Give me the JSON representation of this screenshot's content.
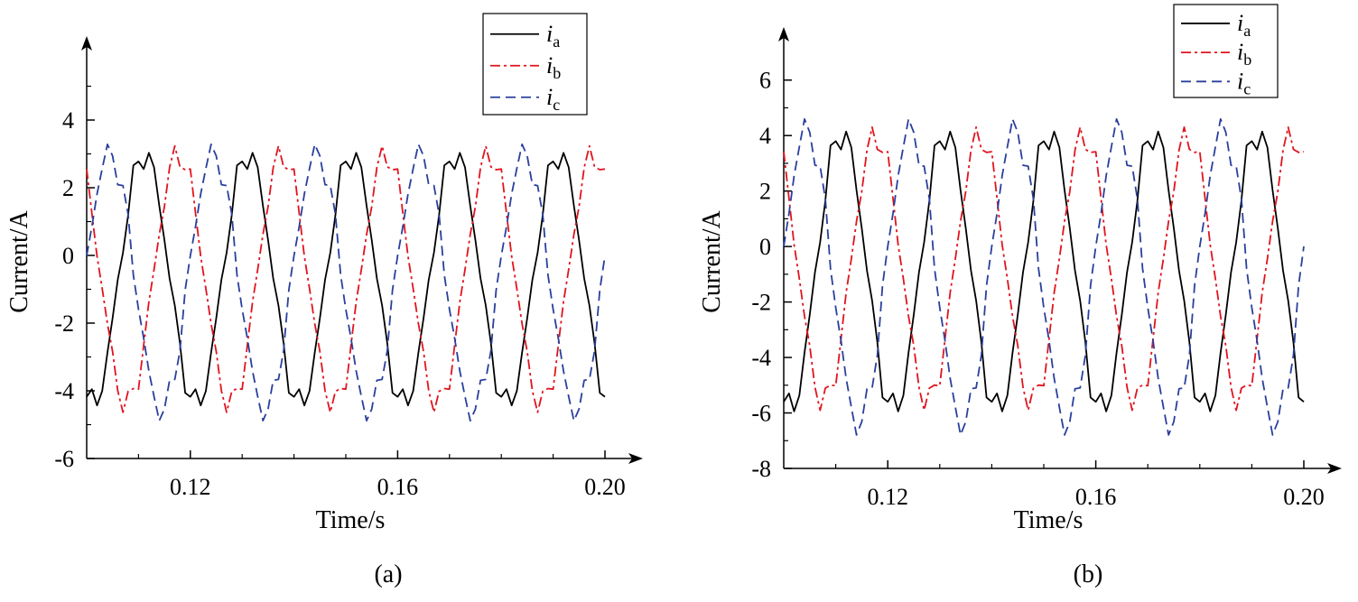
{
  "chart_data": [
    {
      "type": "line",
      "panel_label": "(a)",
      "xlabel": "Time/s",
      "ylabel": "Current/A",
      "xlim": [
        0.1,
        0.2
      ],
      "ylim": [
        -6,
        6
      ],
      "xticks": [
        0.12,
        0.16,
        0.2
      ],
      "xtick_labels": [
        "0.12",
        "0.16",
        "0.20"
      ],
      "yticks": [
        -6,
        -4,
        -2,
        0,
        2,
        4
      ],
      "ytick_labels": [
        "-6",
        "-4",
        "-2",
        "0",
        "2",
        "4"
      ],
      "legend": {
        "position": "top-right",
        "entries": [
          {
            "var": "i",
            "sub": "a"
          },
          {
            "var": "i",
            "sub": "b"
          },
          {
            "var": "i",
            "sub": "c"
          }
        ]
      },
      "frequency_hz": 50,
      "sample_step_s": 0.001,
      "series": [
        {
          "name": "ia",
          "color": "#000000",
          "style": "solid",
          "peak": 3.0,
          "trough": -4.4,
          "phase_deg": -110
        },
        {
          "name": "ib",
          "color": "#e0141e",
          "style": "dashdot",
          "peak": 3.0,
          "trough": -4.4,
          "phase_deg": 130
        },
        {
          "name": "ic",
          "color": "#2a3f9d",
          "style": "dashed",
          "peak": 3.0,
          "trough": -4.6,
          "phase_deg": 10
        }
      ]
    },
    {
      "type": "line",
      "panel_label": "(b)",
      "xlabel": "Time/s",
      "ylabel": "Current/A",
      "xlim": [
        0.1,
        0.2
      ],
      "ylim": [
        -8,
        7
      ],
      "xticks": [
        0.12,
        0.16,
        0.2
      ],
      "xtick_labels": [
        "0.12",
        "0.16",
        "0.20"
      ],
      "yticks": [
        -8,
        -6,
        -4,
        -2,
        0,
        2,
        4,
        6
      ],
      "ytick_labels": [
        "-8",
        "-6",
        "-4",
        "-2",
        "0",
        "2",
        "4",
        "6"
      ],
      "legend": {
        "position": "top-right",
        "entries": [
          {
            "var": "i",
            "sub": "a"
          },
          {
            "var": "i",
            "sub": "b"
          },
          {
            "var": "i",
            "sub": "c"
          }
        ]
      },
      "frequency_hz": 50,
      "sample_step_s": 0.001,
      "series": [
        {
          "name": "ia",
          "color": "#000000",
          "style": "solid",
          "peak": 4.1,
          "trough": -5.9,
          "phase_deg": -110
        },
        {
          "name": "ib",
          "color": "#e0141e",
          "style": "dashdot",
          "peak": 4.0,
          "trough": -5.6,
          "phase_deg": 130
        },
        {
          "name": "ic",
          "color": "#2a3f9d",
          "style": "dashed",
          "peak": 4.2,
          "trough": -6.4,
          "phase_deg": 10
        }
      ]
    }
  ]
}
